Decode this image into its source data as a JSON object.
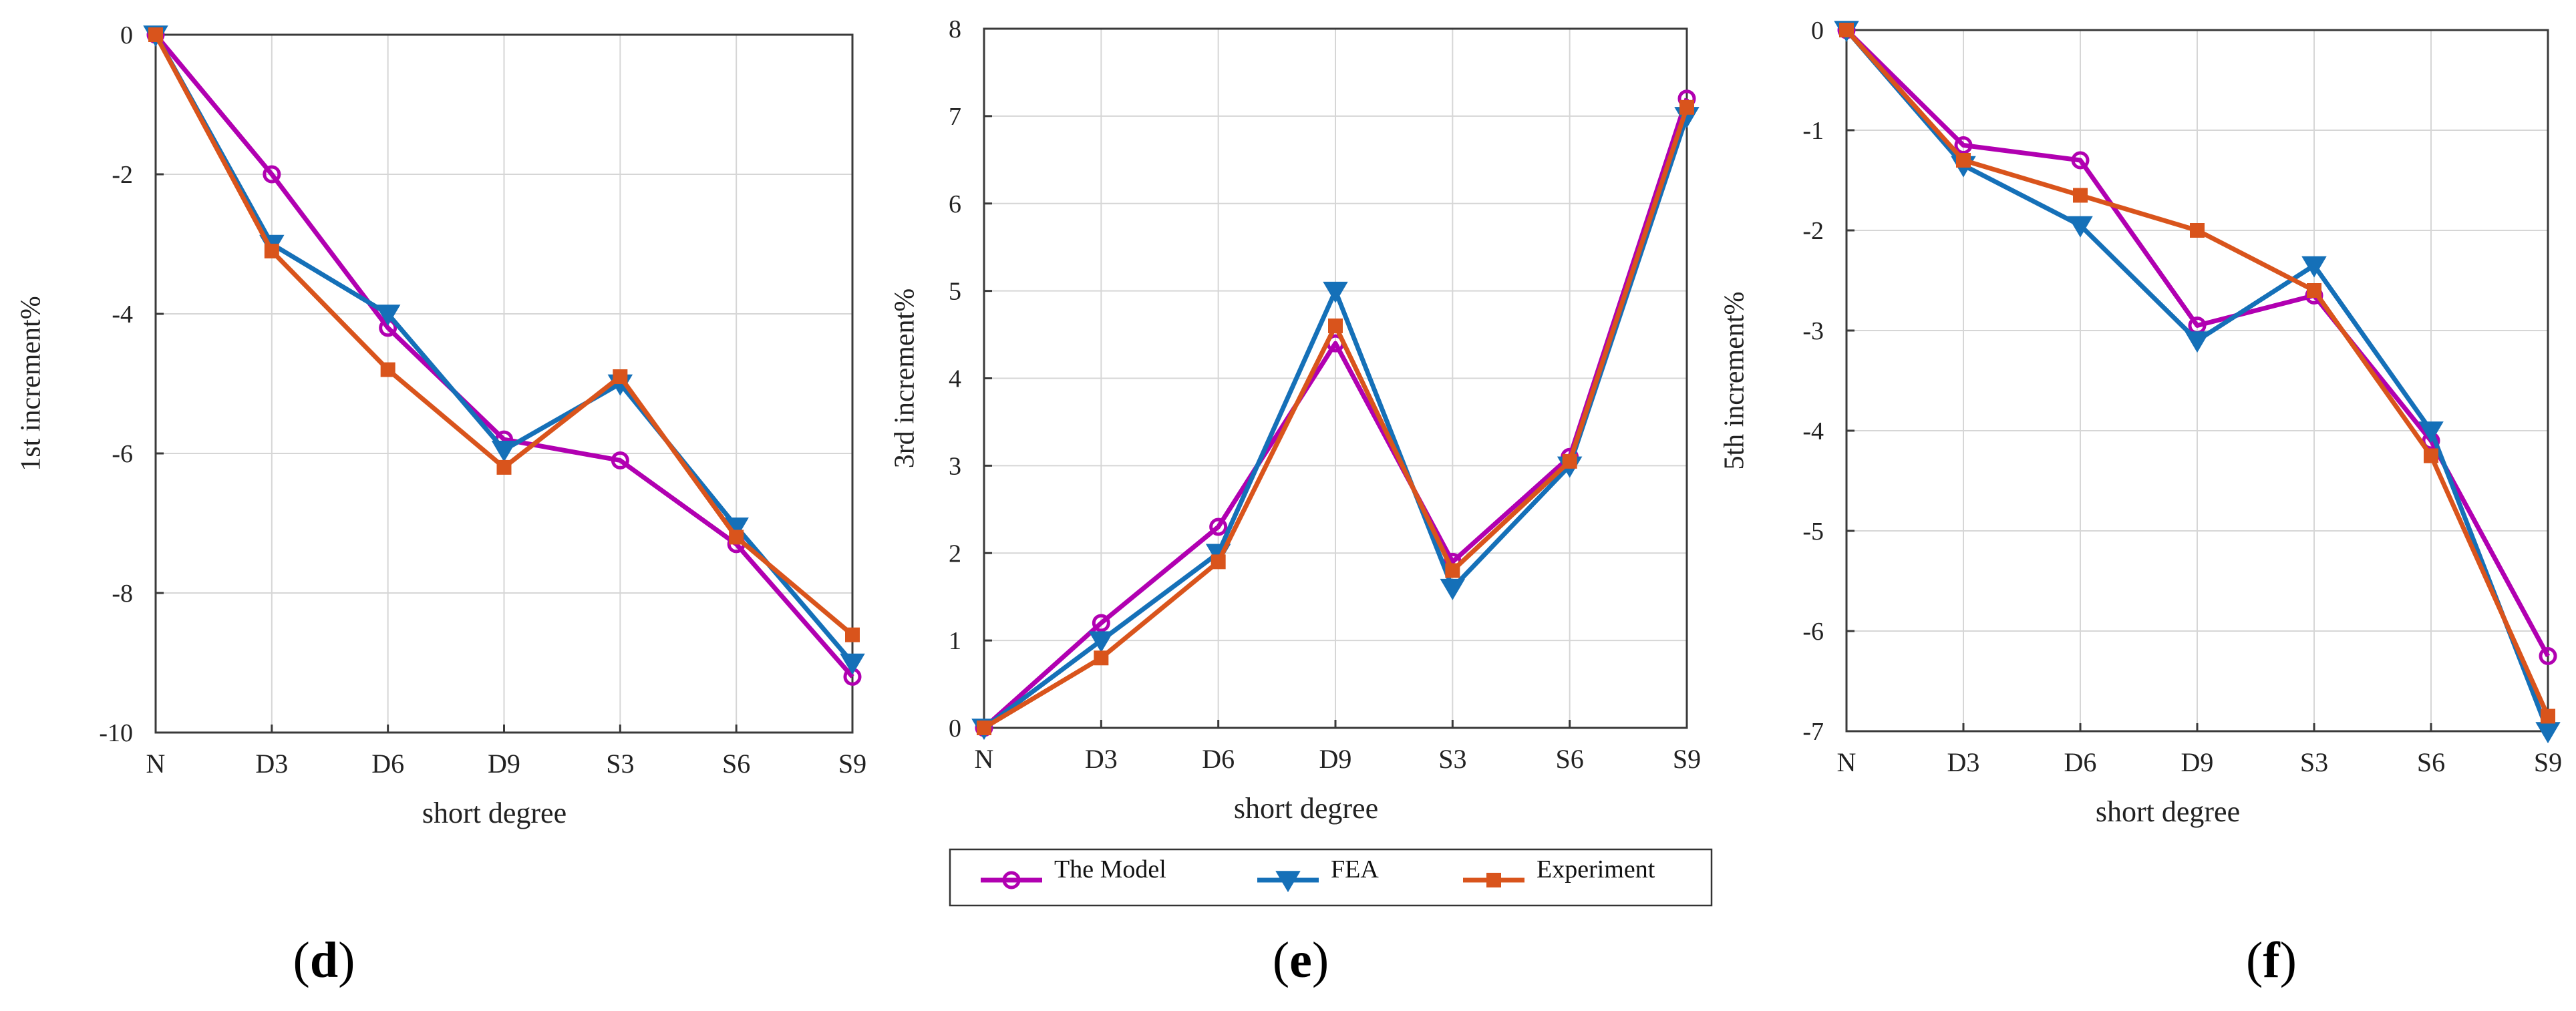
{
  "chart_data": [
    {
      "panel": "d",
      "type": "line",
      "categories": [
        "N",
        "D3",
        "D6",
        "D9",
        "S3",
        "S6",
        "S9"
      ],
      "xlabel": "short degree",
      "ylabel": "1st increment%",
      "ylim": [
        -10,
        0
      ],
      "yticks": [
        0,
        -2,
        -4,
        -6,
        -8,
        -10
      ],
      "ytick_labels": [
        "0",
        "-2",
        "-4",
        "-6",
        "-8",
        "-10"
      ],
      "grid": true,
      "series": [
        {
          "name": "The Model",
          "values": [
            0,
            -2.0,
            -4.2,
            -5.8,
            -6.1,
            -7.3,
            -9.2
          ]
        },
        {
          "name": "FEA",
          "values": [
            0,
            -3.0,
            -4.0,
            -5.95,
            -5.0,
            -7.05,
            -9.0
          ]
        },
        {
          "name": "Experiment",
          "values": [
            0,
            -3.1,
            -4.8,
            -6.2,
            -4.9,
            -7.2,
            -8.6
          ]
        }
      ]
    },
    {
      "panel": "e",
      "type": "line",
      "categories": [
        "N",
        "D3",
        "D6",
        "D9",
        "S3",
        "S6",
        "S9"
      ],
      "xlabel": "short degree",
      "ylabel": "3rd increment%",
      "ylim": [
        0,
        8
      ],
      "yticks": [
        0,
        1,
        2,
        3,
        4,
        5,
        6,
        7,
        8
      ],
      "ytick_labels": [
        "0",
        "1",
        "2",
        "3",
        "4",
        "5",
        "6",
        "7",
        "8"
      ],
      "grid": true,
      "series": [
        {
          "name": "The Model",
          "values": [
            0,
            1.2,
            2.3,
            4.4,
            1.9,
            3.1,
            7.2
          ]
        },
        {
          "name": "FEA",
          "values": [
            0,
            1.0,
            2.0,
            5.0,
            1.6,
            3.0,
            7.0
          ]
        },
        {
          "name": "Experiment",
          "values": [
            0,
            0.8,
            1.9,
            4.6,
            1.8,
            3.05,
            7.1
          ]
        }
      ]
    },
    {
      "panel": "f",
      "type": "line",
      "categories": [
        "N",
        "D3",
        "D6",
        "D9",
        "S3",
        "S6",
        "S9"
      ],
      "xlabel": "short degree",
      "ylabel": "5th increment%",
      "ylim": [
        -7,
        0
      ],
      "yticks": [
        0,
        -1,
        -2,
        -3,
        -4,
        -5,
        -6,
        -7
      ],
      "ytick_labels": [
        "0",
        "-1",
        "-2",
        "-3",
        "-4",
        "-5",
        "-6",
        "-7"
      ],
      "grid": true,
      "series": [
        {
          "name": "The Model",
          "values": [
            0,
            -1.15,
            -1.3,
            -2.95,
            -2.65,
            -4.1,
            -6.25
          ]
        },
        {
          "name": "FEA",
          "values": [
            0,
            -1.35,
            -1.95,
            -3.1,
            -2.35,
            -4.0,
            -7.0
          ]
        },
        {
          "name": "Experiment",
          "values": [
            0,
            -1.3,
            -1.65,
            -2.0,
            -2.6,
            -4.25,
            -6.85
          ]
        }
      ]
    }
  ],
  "series_styles": [
    {
      "name": "The Model",
      "color": "#B100B1",
      "marker": "circle"
    },
    {
      "name": "FEA",
      "color": "#1570B8",
      "marker": "triangle-down"
    },
    {
      "name": "Experiment",
      "color": "#D9541C",
      "marker": "square"
    }
  ],
  "legend": {
    "placement": "bottom-center",
    "entries": [
      "The Model",
      "FEA",
      "Experiment"
    ]
  },
  "panel_labels": [
    {
      "open": "(",
      "letter": "d",
      "close": ")"
    },
    {
      "open": "(",
      "letter": "e",
      "close": ")"
    },
    {
      "open": "(",
      "letter": "f",
      "close": ")"
    }
  ]
}
